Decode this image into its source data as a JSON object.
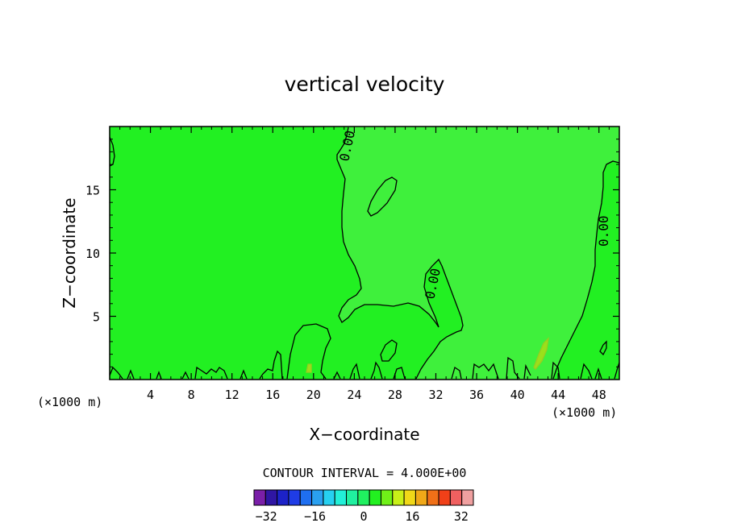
{
  "chart_data": {
    "type": "contour",
    "title": "vertical velocity",
    "xlabel": "X−coordinate",
    "ylabel": "Z−coordinate",
    "x_unit_label": "(×1000 m)",
    "x_unit_label_right": "(×1000 m)",
    "xlim": [
      0,
      50
    ],
    "ylim": [
      0,
      20
    ],
    "x_ticks": [
      4,
      8,
      12,
      16,
      20,
      24,
      28,
      32,
      36,
      40,
      44,
      48
    ],
    "y_ticks": [
      5,
      10,
      15
    ],
    "contour_label": "0.00",
    "contour_interval_text": "CONTOUR INTERVAL = 4.000E+00",
    "colorbar": {
      "min": -36,
      "max": 36,
      "step": 4,
      "tick_labels": [
        "−32",
        "−16",
        "0",
        "16",
        "32"
      ],
      "tick_values": [
        -32,
        -16,
        0,
        16,
        32
      ],
      "colors": [
        "#7a1fa8",
        "#2f16a3",
        "#1c22c8",
        "#1f3ce6",
        "#1f6ff0",
        "#2aa0f0",
        "#26d0f0",
        "#22f0d8",
        "#20f0a0",
        "#20f060",
        "#22f020",
        "#70f018",
        "#c8f018",
        "#f0d818",
        "#f0a818",
        "#f07018",
        "#f04018",
        "#f06060",
        "#f0a0a0"
      ]
    },
    "field_colors": {
      "below_zero": "#22f022",
      "above_zero": "#3ff03c"
    }
  }
}
